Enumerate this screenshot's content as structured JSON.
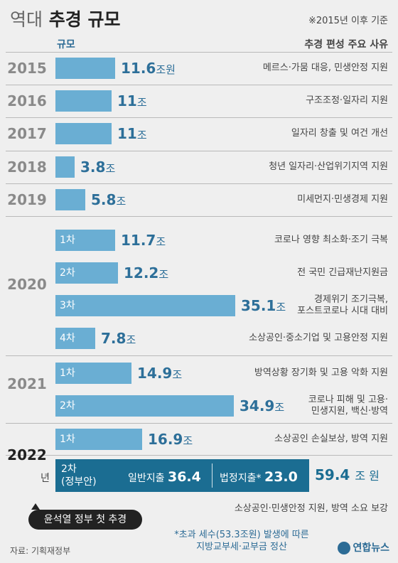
{
  "title": {
    "light": "역대",
    "bold": "추경 규모"
  },
  "note": "※2015년 이후 기준",
  "header": {
    "left": "규모",
    "right": "추경 편성 주요 사유"
  },
  "chart_data": {
    "type": "bar",
    "unit": "조원",
    "rows": [
      {
        "year": "2015",
        "sub": "",
        "value": 11.6,
        "label": "11.6",
        "unit": "조원",
        "reason": "메르스·가뭄 대응, 민생안정 지원"
      },
      {
        "year": "2016",
        "sub": "",
        "value": 11,
        "label": "11",
        "unit": "조",
        "reason": "구조조정·일자리 지원"
      },
      {
        "year": "2017",
        "sub": "",
        "value": 11,
        "label": "11",
        "unit": "조",
        "reason": "일자리 창출 및 여건 개선"
      },
      {
        "year": "2018",
        "sub": "",
        "value": 3.8,
        "label": "3.8",
        "unit": "조",
        "reason": "청년 일자리·산업위기지역 지원"
      },
      {
        "year": "2019",
        "sub": "",
        "value": 5.8,
        "label": "5.8",
        "unit": "조",
        "reason": "미세먼지·민생경제 지원"
      },
      {
        "year": "2020",
        "sub": "1차",
        "value": 11.7,
        "label": "11.7",
        "unit": "조",
        "reason": "코로나 영향 최소화·조기 극복"
      },
      {
        "year": "2020",
        "sub": "2차",
        "value": 12.2,
        "label": "12.2",
        "unit": "조",
        "reason": "전 국민 긴급재난지원금"
      },
      {
        "year": "2020",
        "sub": "3차",
        "value": 35.1,
        "label": "35.1",
        "unit": "조",
        "reason": "경제위기 조기극복,\n포스트코로나 시대 대비"
      },
      {
        "year": "2020",
        "sub": "4차",
        "value": 7.8,
        "label": "7.8",
        "unit": "조",
        "reason": "소상공인·중소기업 및 고용안정 지원"
      },
      {
        "year": "2021",
        "sub": "1차",
        "value": 14.9,
        "label": "14.9",
        "unit": "조",
        "reason": "방역상황 장기화 및 고용 악화 지원"
      },
      {
        "year": "2021",
        "sub": "2차",
        "value": 34.9,
        "label": "34.9",
        "unit": "조",
        "reason": "코로나 피해 및 고용·\n민생지원, 백신·방역"
      },
      {
        "year": "2022",
        "sub": "1차",
        "value": 16.9,
        "label": "16.9",
        "unit": "조",
        "reason": "소상공인 손실보상, 방역 지원"
      }
    ],
    "year_labels": [
      "2015",
      "2016",
      "2017",
      "2018",
      "2019",
      "2020",
      "2021",
      "2022"
    ],
    "second_2022": {
      "sub": "2차",
      "sub_note": "(정부안)",
      "general_label": "일반지출",
      "general_value": 36.4,
      "statutory_label": "법정지출*",
      "statutory_value": 23.0,
      "statutory_text": "23.0",
      "total": 59.4,
      "total_unit": "조 원",
      "reason": "소상공인·민생안정 지원, 방역 소요 보강"
    }
  },
  "year_suffix": "년",
  "callout": "윤석열 정부 첫 추경",
  "footnote": "*초과 세수(53.3조원) 발생에 따른\n지방교부세·교부금 정산",
  "source": "자료: 기획재정부",
  "logo": "연합뉴스",
  "colors": {
    "bar": "#6aaed3",
    "bar_2022": "#1b6d92",
    "accent": "#2c6b95"
  }
}
